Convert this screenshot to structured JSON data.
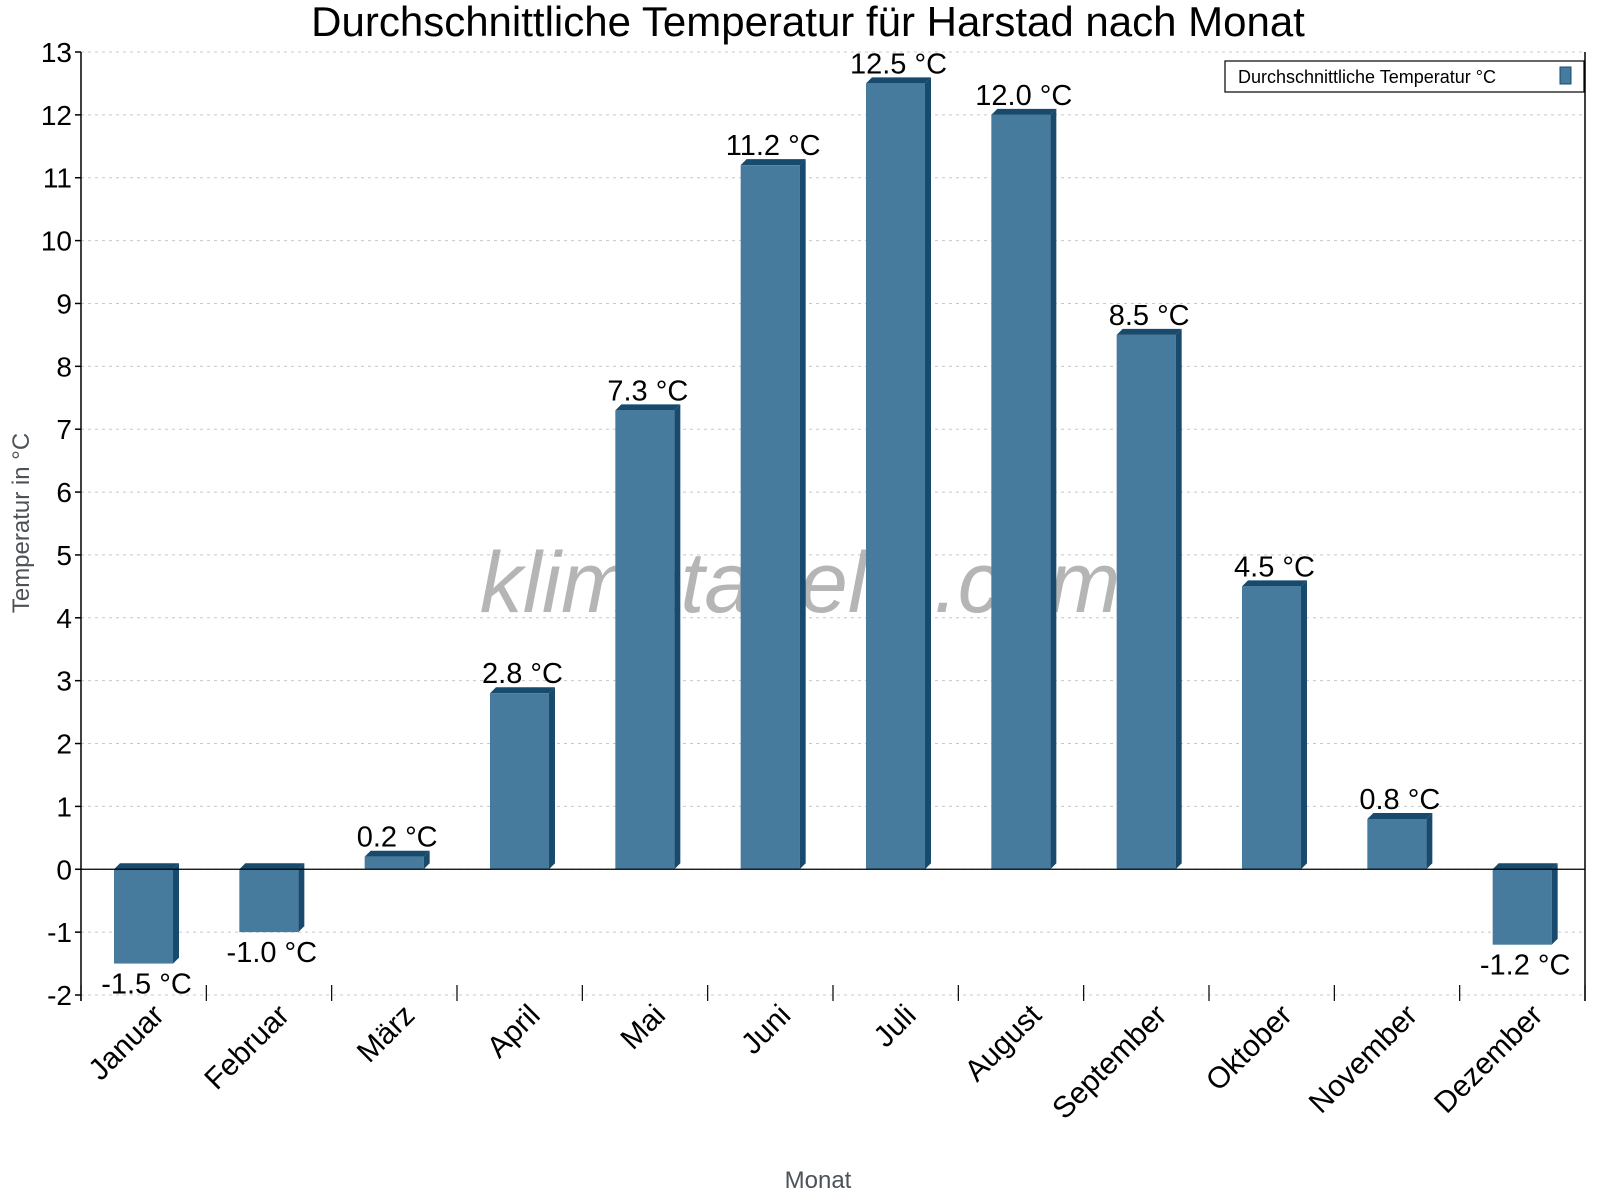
{
  "chart_data": {
    "type": "bar",
    "title": "Durchschnittliche Temperatur für Harstad nach Monat",
    "xlabel": "Monat",
    "ylabel": "Temperatur in °C",
    "ylim": [
      -2,
      13
    ],
    "yticks": [
      "-2",
      "-1",
      "0",
      "1",
      "2",
      "3",
      "4",
      "5",
      "6",
      "7",
      "8",
      "9",
      "10",
      "11",
      "12",
      "13"
    ],
    "grid": true,
    "legend_position": "top-right",
    "categories": [
      "Januar",
      "Februar",
      "März",
      "April",
      "Mai",
      "Juni",
      "Juli",
      "August",
      "September",
      "Oktober",
      "November",
      "Dezember"
    ],
    "series": [
      {
        "name": "Durchschnittliche Temperatur °C",
        "values": [
          -1.5,
          -1.0,
          0.2,
          2.8,
          7.3,
          11.2,
          12.5,
          12.0,
          8.5,
          4.5,
          0.8,
          -1.2
        ],
        "labels": [
          "-1.5 °C",
          "-1.0 °C",
          "0.2 °C",
          "2.8 °C",
          "7.3 °C",
          "11.2 °C",
          "12.5 °C",
          "12.0 °C",
          "8.5 °C",
          "4.5 °C",
          "0.8 °C",
          "-1.2 °C"
        ]
      }
    ],
    "colors": {
      "bar_front": "#467b9d",
      "bar_side": "#174a6c",
      "grid": "#c8c8c8"
    },
    "watermark": "klimatabelle.com"
  }
}
